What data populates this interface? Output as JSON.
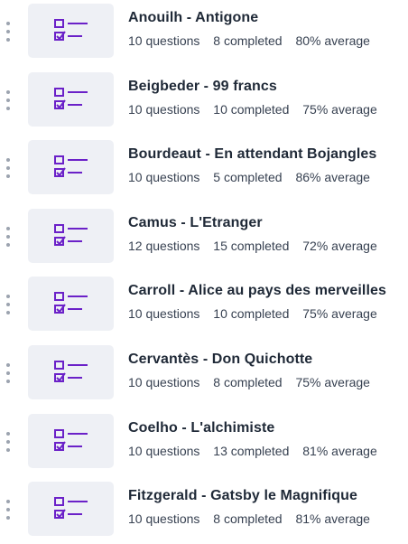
{
  "icon_color": "#6b21c8",
  "thumb_background": "#eef0f5",
  "quizzes": [
    {
      "title": "Anouilh - Antigone",
      "questions": "10 questions",
      "completed": "8 completed",
      "average": "80% average",
      "icon": "checklist-icon"
    },
    {
      "title": "Beigbeder - 99 francs",
      "questions": "10 questions",
      "completed": "10 completed",
      "average": "75% average",
      "icon": "checklist-icon"
    },
    {
      "title": "Bourdeaut - En attendant Bojangles",
      "questions": "10 questions",
      "completed": "5 completed",
      "average": "86% average",
      "icon": "checklist-icon"
    },
    {
      "title": "Camus - L'Etranger",
      "questions": "12 questions",
      "completed": "15 completed",
      "average": "72% average",
      "icon": "checklist-icon"
    },
    {
      "title": "Carroll - Alice au pays des merveilles",
      "questions": "10 questions",
      "completed": "10 completed",
      "average": "75% average",
      "icon": "checklist-icon"
    },
    {
      "title": "Cervantès - Don Quichotte",
      "questions": "10 questions",
      "completed": "8 completed",
      "average": "75% average",
      "icon": "checklist-icon"
    },
    {
      "title": "Coelho - L'alchimiste",
      "questions": "10 questions",
      "completed": "13 completed",
      "average": "81% average",
      "icon": "checklist-icon"
    },
    {
      "title": "Fitzgerald - Gatsby le Magnifique",
      "questions": "10 questions",
      "completed": "8 completed",
      "average": "81% average",
      "icon": "checklist-icon"
    }
  ]
}
